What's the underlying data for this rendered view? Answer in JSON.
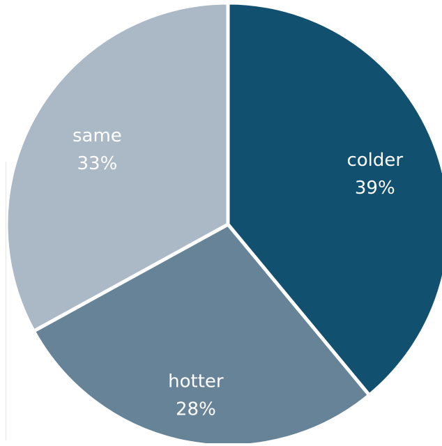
{
  "chart_data": {
    "type": "pie",
    "title": "",
    "start_angle_deg": 0,
    "direction": "clockwise",
    "slices": [
      {
        "label": "colder",
        "value": 39,
        "value_label": "39%",
        "color": "#11506f"
      },
      {
        "label": "hotter",
        "value": 28,
        "value_label": "28%",
        "color": "#678397"
      },
      {
        "label": "same",
        "value": 33,
        "value_label": "33%",
        "color": "#abb9c6"
      }
    ],
    "separator_color": "#ffffff",
    "label_color": "#ffffff"
  }
}
